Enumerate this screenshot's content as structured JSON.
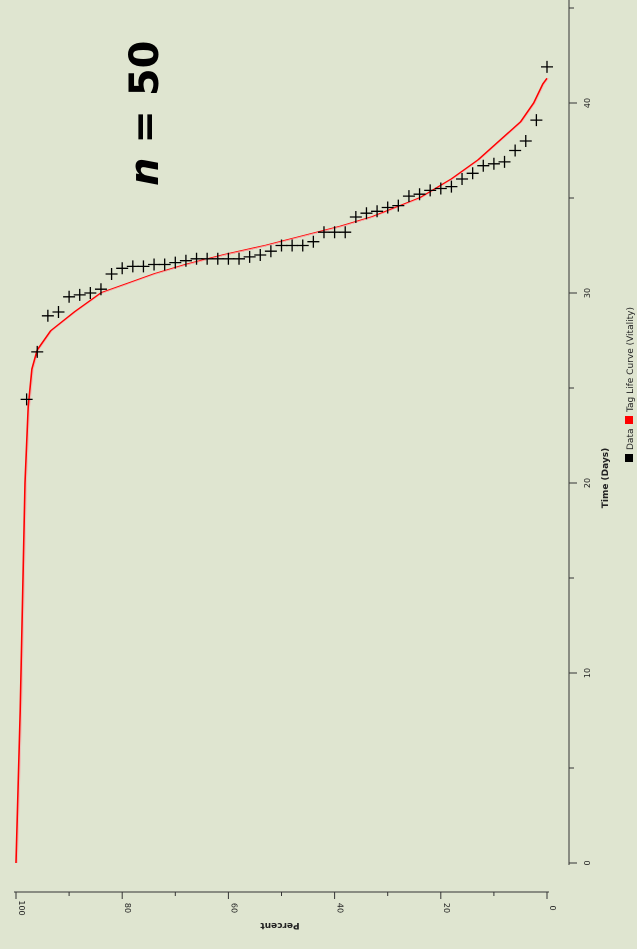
{
  "chart_data": {
    "type": "scatter",
    "orientation": "rotated-90-clockwise",
    "title": "",
    "annotation": "n = 50",
    "annotation_var": "n",
    "annotation_rest": " = 50",
    "xlabel": "Time (Days)",
    "ylabel": "Percent",
    "xlim": [
      0,
      45
    ],
    "ylim": [
      0,
      100
    ],
    "xticks": [
      0,
      10,
      20,
      30,
      40
    ],
    "yticks": [
      0,
      20,
      40,
      60,
      80,
      100
    ],
    "grid": false,
    "legend_position": "bottom",
    "legend": [
      {
        "label": "Data",
        "color": "#000000"
      },
      {
        "label": "Tag Life Curve (Vitality)",
        "color": "#ff0000"
      }
    ],
    "series": [
      {
        "name": "Data",
        "type": "scatter",
        "marker": "+",
        "color": "#000000",
        "x": [
          24.4,
          26.9,
          28.8,
          29.0,
          29.8,
          29.9,
          30.0,
          30.2,
          31.0,
          31.3,
          31.4,
          31.4,
          31.5,
          31.5,
          31.6,
          31.7,
          31.8,
          31.8,
          31.8,
          31.8,
          31.8,
          31.9,
          32.0,
          32.2,
          32.5,
          32.5,
          32.5,
          32.7,
          33.2,
          33.2,
          33.2,
          34.0,
          34.2,
          34.3,
          34.5,
          34.6,
          35.1,
          35.2,
          35.4,
          35.5,
          35.6,
          36.0,
          36.3,
          36.7,
          36.8,
          36.9,
          37.5,
          38.0,
          39.1,
          41.9
        ],
        "y": [
          98,
          96,
          94,
          92,
          90,
          88,
          86,
          84,
          82,
          80,
          78,
          76,
          74,
          72,
          70,
          68,
          66,
          64,
          62,
          60,
          58,
          56,
          54,
          52,
          50,
          48,
          46,
          44,
          42,
          40,
          38,
          36,
          34,
          32,
          30,
          28,
          26,
          24,
          22,
          20,
          18,
          16,
          14,
          12,
          10,
          8,
          6,
          4,
          2,
          0
        ]
      },
      {
        "name": "Tag Life Curve (Vitality)",
        "type": "line",
        "color": "#ff0000",
        "x": [
          0,
          4,
          8,
          12,
          16,
          20,
          24,
          26,
          27,
          28,
          29,
          30,
          31,
          31.5,
          32,
          32.5,
          33,
          33.5,
          34,
          35,
          36,
          37,
          38,
          39,
          40,
          41,
          41.3
        ],
        "y": [
          100,
          99.6,
          99.2,
          98.9,
          98.6,
          98.3,
          97.7,
          97.0,
          96.0,
          93.5,
          89.0,
          84.0,
          74.0,
          68.0,
          61.0,
          53.0,
          46.0,
          39.0,
          33.0,
          24.0,
          18.0,
          13.0,
          9.0,
          5.0,
          2.5,
          0.8,
          0
        ]
      }
    ]
  }
}
